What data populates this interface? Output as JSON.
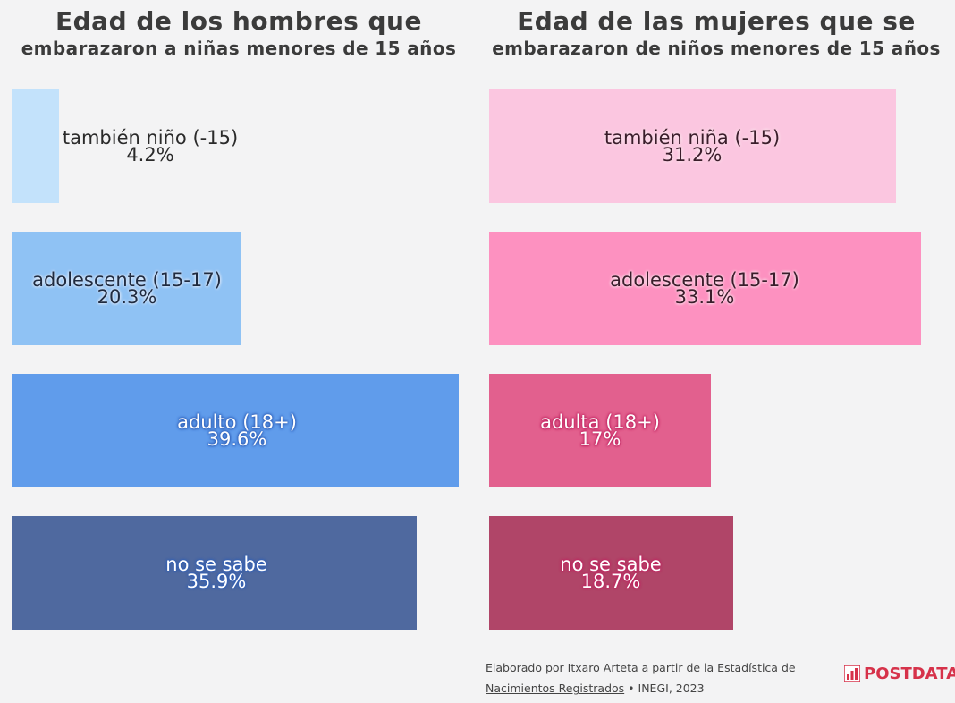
{
  "chart_data": [
    {
      "type": "bar",
      "orientation": "horizontal",
      "title_line1": "Edad de los hombres que",
      "title_line2": "embarazaron a niñas menores de 15 años",
      "categories": [
        "también niño (-15)",
        "adolescente (15-17)",
        "adulto (18+)",
        "no se sabe"
      ],
      "values": [
        4.2,
        20.3,
        39.6,
        35.9
      ],
      "value_labels": [
        "4.2%",
        "20.3%",
        "39.6%",
        "35.9%"
      ],
      "colors": [
        "#c3e2fb",
        "#8fc2f4",
        "#609ceb",
        "#4f699f"
      ],
      "xlim": [
        0,
        40
      ]
    },
    {
      "type": "bar",
      "orientation": "horizontal",
      "title_line1": "Edad de las mujeres que se",
      "title_line2": "embarazaron de niños menores de 15 años",
      "categories": [
        "también niña (-15)",
        "adolescente (15-17)",
        "adulta (18+)",
        "no se sabe"
      ],
      "values": [
        31.2,
        33.1,
        17,
        18.7
      ],
      "value_labels": [
        "31.2%",
        "33.1%",
        "17%",
        "18.7%"
      ],
      "colors": [
        "#fbc6e0",
        "#fd91c0",
        "#e2608e",
        "#b04568"
      ],
      "xlim": [
        0,
        33.1
      ]
    }
  ],
  "footer": {
    "prefix": "Elaborado por Itxaro Arteta a partir de la ",
    "link1": "Estadística de",
    "link2": "Nacimientos Registrados",
    "suffix": " • INEGI, 2023"
  },
  "brand": {
    "name": "POSTDATA",
    "color": "#d6324a"
  }
}
